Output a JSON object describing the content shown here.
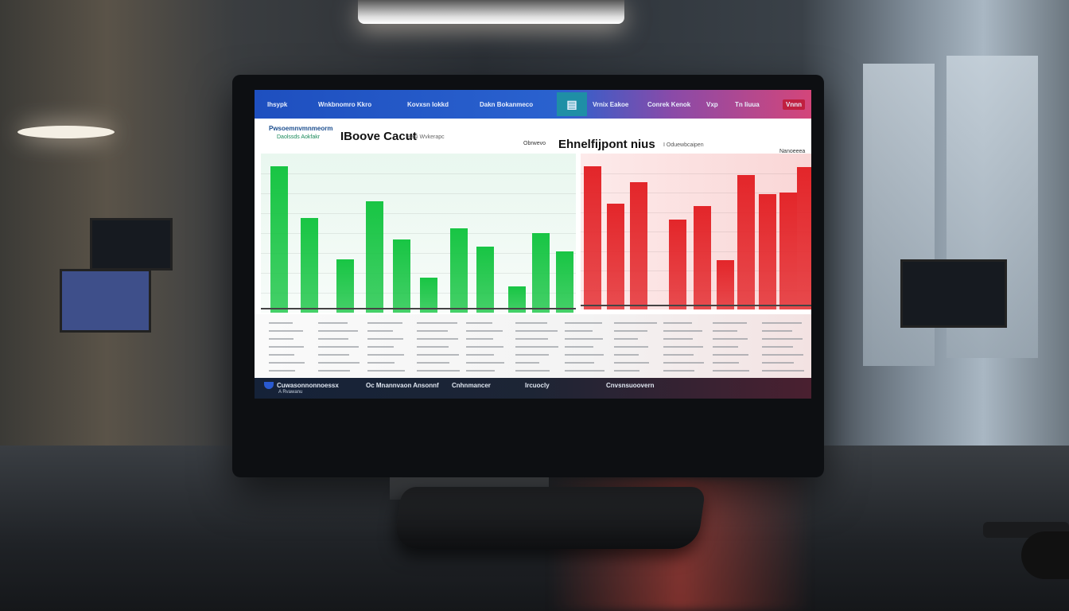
{
  "scene": {
    "description_colors": {
      "green": "#18c544",
      "red": "#e3262a",
      "nav_blue": "#1e4fbf",
      "nav_pink": "#d4467a"
    }
  },
  "nav": {
    "items": [
      "Ihsypk",
      "Wnkbnomro Kkro",
      "Kovxsn Iokkd",
      "Dakn Bokanmeco",
      "Vrnix Eakoe",
      "Conrek Kenok",
      "Vxp",
      "Tn Iiuua",
      "Vnnn"
    ],
    "icon": "chart-icon"
  },
  "header": {
    "left_title": "Pwsoemnvmnmeorm",
    "left_sub": "Daolssds Aokfakr",
    "title": "IBoove Cacut",
    "title_sub": "Basi Wvkerapc",
    "title2_prefix": "Obrwevo",
    "title2": "Ehnelfijpont nius",
    "title2_sub": "I Oduewbcaipen",
    "right_label": "Nanoeeea"
  },
  "chart_data": [
    {
      "type": "bar",
      "title": "IBoove Cacut",
      "values": [
        96,
        62,
        35,
        73,
        48,
        23,
        55,
        43,
        17,
        52,
        40
      ],
      "color": "#18c544"
    },
    {
      "type": "bar",
      "title": "Ehnelfijpont nius",
      "values": [
        96,
        71,
        85,
        60,
        69,
        33,
        90,
        77,
        78,
        95
      ],
      "color": "#e3262a"
    }
  ],
  "footer": {
    "items": [
      "Cuwasonnonnoessx",
      "Oc Mnannvaon Ansonnf",
      "Cnhnmancer",
      "Ircuocly",
      "Cnvsnsuoovern"
    ],
    "sub": "A Rvawanu"
  }
}
